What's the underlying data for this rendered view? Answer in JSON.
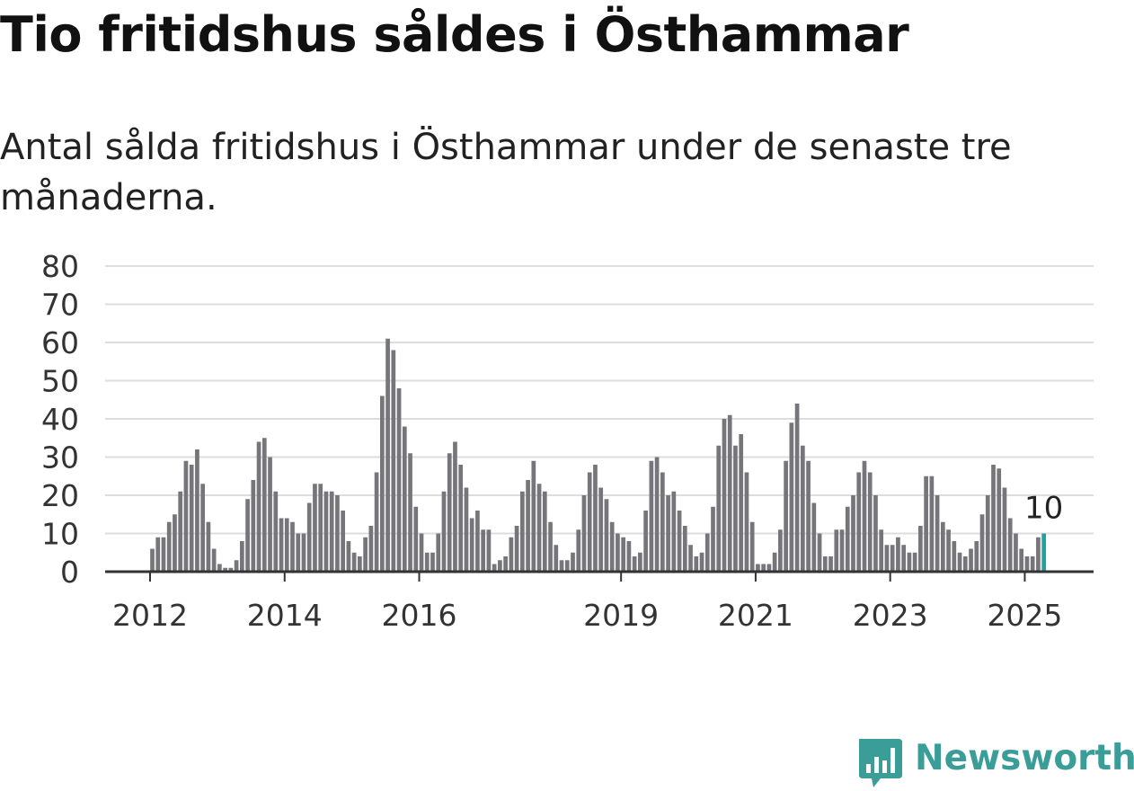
{
  "header": {
    "title": "Tio fritidshus såldes i Östhammar",
    "subtitle": "Antal sålda fritidshus i Östhammar under de senaste tre månaderna."
  },
  "brand": {
    "name": "Newsworthy",
    "icon": "newsworthy-logo-icon",
    "color": "#3a9d98"
  },
  "colors": {
    "bar": "#76757a",
    "highlight": "#20a39e",
    "grid": "#dddddd",
    "axis": "#333333"
  },
  "chart_data": {
    "type": "bar",
    "title": "Tio fritidshus såldes i Östhammar",
    "subtitle": "Antal sålda fritidshus i Östhammar under de senaste tre månaderna.",
    "ylim": [
      0,
      80
    ],
    "y_ticks": [
      "0",
      "10",
      "20",
      "30",
      "40",
      "50",
      "60",
      "70",
      "80"
    ],
    "x_ticks": [
      {
        "label": "2012",
        "index": 0
      },
      {
        "label": "2014",
        "index": 24
      },
      {
        "label": "2016",
        "index": 48
      },
      {
        "label": "2019",
        "index": 84
      },
      {
        "label": "2021",
        "index": 108
      },
      {
        "label": "2023",
        "index": 132
      },
      {
        "label": "2025",
        "index": 156
      }
    ],
    "first_month": "2012-01",
    "grid": true,
    "highlight_last": true,
    "annotation": {
      "text": "10",
      "index": 159
    },
    "values": [
      6,
      9,
      9,
      13,
      15,
      21,
      29,
      28,
      32,
      23,
      13,
      6,
      2,
      1,
      1,
      3,
      8,
      19,
      24,
      34,
      35,
      30,
      21,
      14,
      14,
      13,
      10,
      10,
      18,
      23,
      23,
      21,
      21,
      20,
      16,
      8,
      5,
      4,
      9,
      12,
      26,
      46,
      61,
      58,
      48,
      38,
      31,
      17,
      10,
      5,
      5,
      10,
      21,
      31,
      34,
      28,
      22,
      14,
      16,
      11,
      11,
      2,
      3,
      4,
      9,
      12,
      21,
      24,
      29,
      23,
      21,
      13,
      7,
      3,
      3,
      5,
      11,
      20,
      26,
      28,
      22,
      19,
      13,
      10,
      9,
      8,
      4,
      5,
      16,
      29,
      30,
      26,
      20,
      21,
      16,
      12,
      7,
      4,
      5,
      10,
      17,
      33,
      40,
      41,
      33,
      36,
      26,
      13,
      2,
      2,
      2,
      5,
      11,
      29,
      39,
      44,
      33,
      29,
      18,
      10,
      4,
      4,
      11,
      11,
      17,
      20,
      26,
      29,
      26,
      20,
      11,
      7,
      7,
      9,
      7,
      5,
      5,
      12,
      25,
      25,
      20,
      13,
      11,
      8,
      5,
      4,
      6,
      8,
      15,
      20,
      28,
      27,
      22,
      14,
      10,
      6,
      4,
      4,
      9,
      10
    ]
  }
}
